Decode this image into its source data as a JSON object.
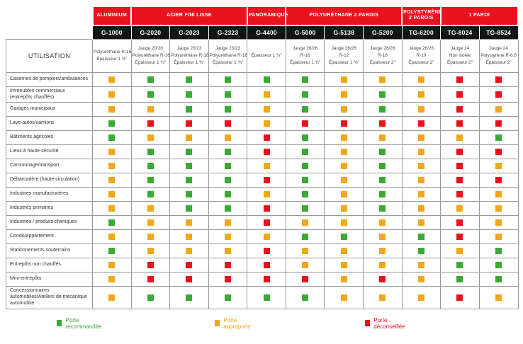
{
  "colors": {
    "G": "#3aaa35",
    "Y": "#f0a818",
    "R": "#e8131f",
    "brand_red": "#e8131f",
    "header_black": "#141414"
  },
  "header": {
    "corner_label": "UTILISATION",
    "bands": [
      {
        "label": "ALUMINIUM",
        "span": 1
      },
      {
        "label": "ACIER FINI LISSE",
        "span": 3
      },
      {
        "label": "PANORAMIQUE",
        "span": 1
      },
      {
        "label": "POLYURÉTHANE 2 PAROIS",
        "span": 3
      },
      {
        "label": "POLYSTYRÈNE 2 PAROIS",
        "span": 1
      },
      {
        "label": "1 PAROI",
        "span": 2
      }
    ],
    "models": [
      {
        "name": "G-1000",
        "specs": [
          "Polyuréthane R-16",
          "Épaisseur 1 ⅜″"
        ]
      },
      {
        "name": "G-2020",
        "specs": [
          "Jauge 20/20",
          "Polyuréthane R-16",
          "Épaisseur 1 ⅜″"
        ]
      },
      {
        "name": "G-2023",
        "specs": [
          "Jauge 20/23",
          "Polyuréthane R-16",
          "Épaisseur 1 ¾″"
        ]
      },
      {
        "name": "G-2323",
        "specs": [
          "Jauge 23/23",
          "Polyuréthane R-16",
          "Épaisseur 1 ¾″"
        ]
      },
      {
        "name": "G-4400",
        "specs": [
          "Épaisseur 1 ¾″"
        ]
      },
      {
        "name": "G-5000",
        "specs": [
          "Jauge 26/26",
          "R-16",
          "Épaisseur 1 ¾″"
        ]
      },
      {
        "name": "G-5138",
        "specs": [
          "Jauge 26/26",
          "R-12",
          "Épaisseur 1 ⅜″"
        ]
      },
      {
        "name": "G-5200",
        "specs": [
          "Jauge 26/26",
          "R-18",
          "Épaisseur 2″"
        ]
      },
      {
        "name": "TG-6200",
        "specs": [
          "Jauge 26/26",
          "R-10",
          "Épaisseur 2″"
        ]
      },
      {
        "name": "TG-8024",
        "specs": [
          "Jauge 24",
          "Non isolée",
          "Épaisseur 2″"
        ]
      },
      {
        "name": "TG-8524",
        "specs": [
          "Jauge 24",
          "Polystyrène R-6,6",
          "Épaisseur 2″"
        ]
      }
    ]
  },
  "chart_data": {
    "type": "table",
    "columns": [
      "G-1000",
      "G-2020",
      "G-2023",
      "G-2323",
      "G-4400",
      "G-5000",
      "G-5138",
      "G-5200",
      "TG-6200",
      "TG-8024",
      "TG-8524"
    ],
    "rows": [
      {
        "label": "Casernes de pompiers/ambulances",
        "cells": [
          "Y",
          "G",
          "G",
          "G",
          "G",
          "G",
          "Y",
          "Y",
          "Y",
          "R",
          "R"
        ]
      },
      {
        "label": "Immeubles commerciaux (entrepôts chauffés)",
        "cells": [
          "Y",
          "G",
          "G",
          "G",
          "Y",
          "G",
          "Y",
          "G",
          "Y",
          "R",
          "R"
        ]
      },
      {
        "label": "Garages municipaux",
        "cells": [
          "Y",
          "Y",
          "G",
          "G",
          "Y",
          "G",
          "Y",
          "G",
          "Y",
          "R",
          "Y"
        ]
      },
      {
        "label": "Lave-autos/camions",
        "cells": [
          "G",
          "R",
          "R",
          "R",
          "Y",
          "R",
          "R",
          "R",
          "R",
          "R",
          "R"
        ]
      },
      {
        "label": "Bâtiments agricoles",
        "cells": [
          "G",
          "Y",
          "Y",
          "Y",
          "R",
          "G",
          "Y",
          "Y",
          "Y",
          "Y",
          "G"
        ]
      },
      {
        "label": "Lieux à haute sécurité",
        "cells": [
          "Y",
          "G",
          "G",
          "G",
          "R",
          "G",
          "Y",
          "G",
          "Y",
          "R",
          "R"
        ]
      },
      {
        "label": "Camionnage/transport",
        "cells": [
          "Y",
          "G",
          "G",
          "G",
          "Y",
          "G",
          "Y",
          "G",
          "Y",
          "R",
          "Y"
        ]
      },
      {
        "label": "Débarcadère (haute circulation)",
        "cells": [
          "Y",
          "G",
          "G",
          "G",
          "R",
          "G",
          "Y",
          "G",
          "Y",
          "R",
          "R"
        ]
      },
      {
        "label": "Industries manufacturières",
        "cells": [
          "Y",
          "G",
          "G",
          "G",
          "Y",
          "G",
          "Y",
          "G",
          "Y",
          "R",
          "Y"
        ]
      },
      {
        "label": "Industries primaires",
        "cells": [
          "Y",
          "Y",
          "G",
          "G",
          "R",
          "G",
          "Y",
          "G",
          "Y",
          "Y",
          "Y"
        ]
      },
      {
        "label": "Industries / produits chimiques",
        "cells": [
          "G",
          "Y",
          "Y",
          "Y",
          "R",
          "Y",
          "Y",
          "Y",
          "Y",
          "R",
          "Y"
        ]
      },
      {
        "label": "Condo/appartement",
        "cells": [
          "Y",
          "Y",
          "Y",
          "Y",
          "Y",
          "G",
          "G",
          "Y",
          "G",
          "R",
          "Y"
        ]
      },
      {
        "label": "Stationnements souterrains",
        "cells": [
          "G",
          "Y",
          "Y",
          "Y",
          "R",
          "Y",
          "Y",
          "Y",
          "G",
          "Y",
          "G"
        ]
      },
      {
        "label": "Entrepôts non chauffés",
        "cells": [
          "Y",
          "R",
          "R",
          "R",
          "R",
          "Y",
          "Y",
          "Y",
          "Y",
          "G",
          "G"
        ]
      },
      {
        "label": "Mini-entrepôts",
        "cells": [
          "Y",
          "R",
          "R",
          "R",
          "R",
          "R",
          "Y",
          "R",
          "Y",
          "G",
          "G"
        ]
      },
      {
        "label": "Concessionnaires automobiles/Ateliers de mécanique automobile",
        "cells": [
          "Y",
          "G",
          "G",
          "G",
          "G",
          "G",
          "Y",
          "Y",
          "Y",
          "R",
          "Y"
        ]
      }
    ],
    "legend": [
      {
        "key": "G",
        "label": "Porte recommandée"
      },
      {
        "key": "Y",
        "label": "Porte appropriée"
      },
      {
        "key": "R",
        "label": "Porte déconseillée"
      }
    ]
  }
}
